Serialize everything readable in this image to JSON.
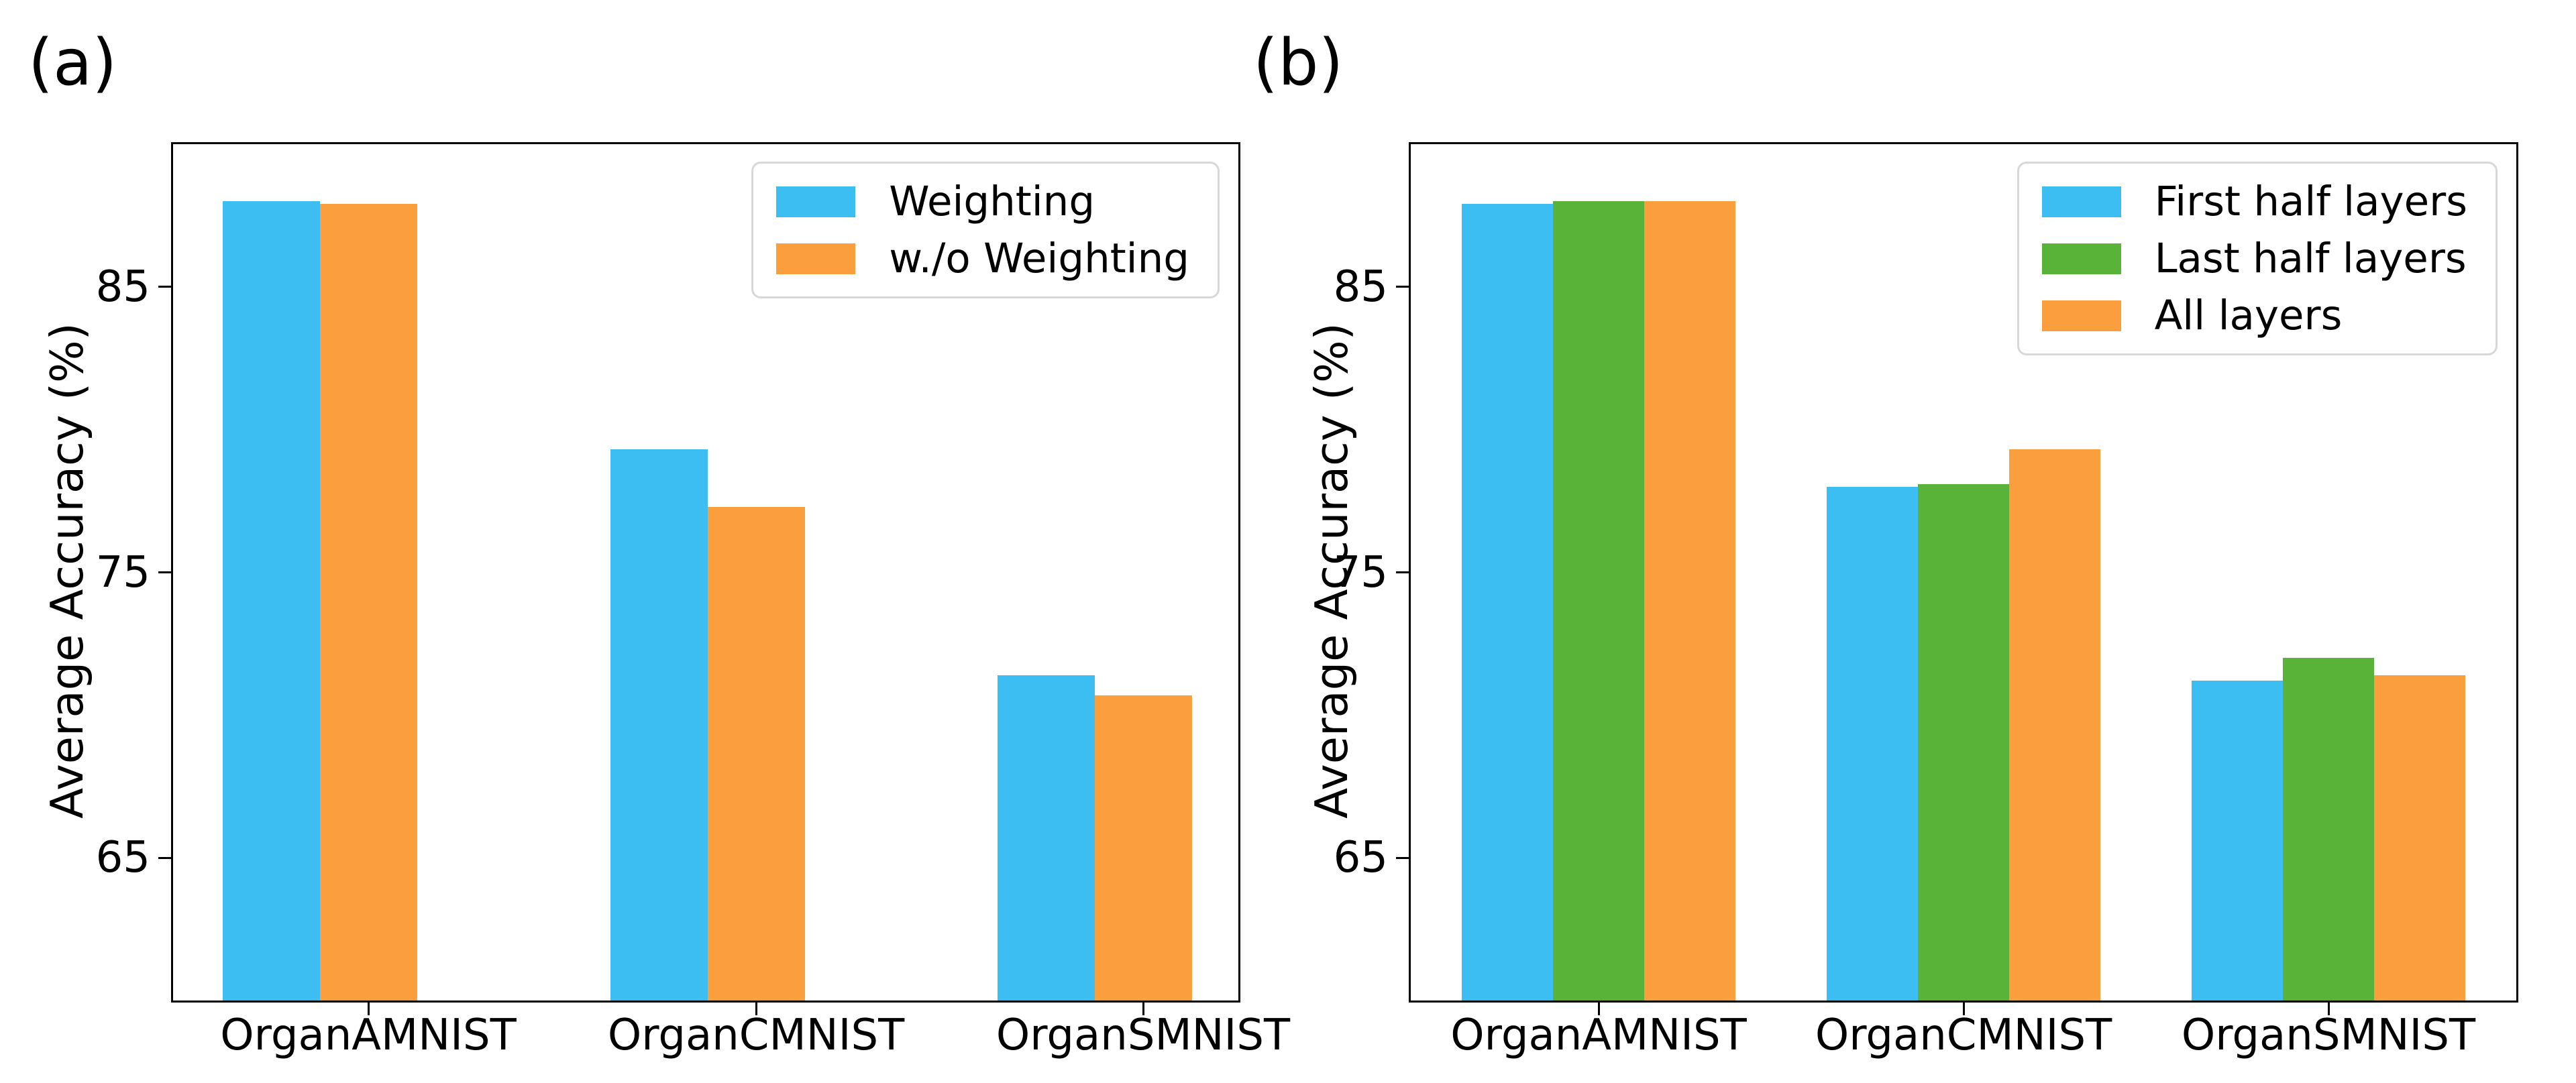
{
  "figure": {
    "background": "#ffffff",
    "axis_color": "#000000",
    "legend_border_color": "#d8d8d8"
  },
  "chart_data": [
    {
      "type": "bar",
      "panel_label": "(a)",
      "title": "",
      "xlabel": "",
      "ylabel": "Average Accuracy (%)",
      "categories": [
        "OrganAMNIST",
        "OrganCMNIST",
        "OrganSMNIST"
      ],
      "series": [
        {
          "name": "Weighting",
          "color": "#3DBEF2",
          "values": [
            88.0,
            79.3,
            71.4
          ]
        },
        {
          "name": "w./o Weighting",
          "color": "#FB9E3E",
          "values": [
            87.9,
            77.3,
            70.7
          ]
        }
      ],
      "ylim": [
        60,
        90
      ],
      "yticks": [
        65,
        75,
        85
      ],
      "grid": false,
      "legend_position": "upper right"
    },
    {
      "type": "bar",
      "panel_label": "(b)",
      "title": "",
      "xlabel": "",
      "ylabel": "Average Accuracy (%)",
      "categories": [
        "OrganAMNIST",
        "OrganCMNIST",
        "OrganSMNIST"
      ],
      "series": [
        {
          "name": "First half layers",
          "color": "#3DBEF2",
          "values": [
            87.9,
            78.0,
            71.2
          ]
        },
        {
          "name": "Last half layers",
          "color": "#5AB339",
          "values": [
            88.0,
            78.1,
            72.0
          ]
        },
        {
          "name": "All layers",
          "color": "#FB9E3E",
          "values": [
            88.0,
            79.3,
            71.4
          ]
        }
      ],
      "ylim": [
        60,
        90
      ],
      "yticks": [
        65,
        75,
        85
      ],
      "grid": false,
      "legend_position": "upper right"
    }
  ]
}
